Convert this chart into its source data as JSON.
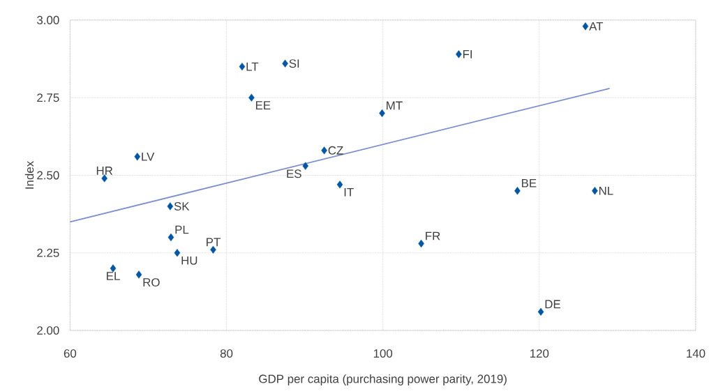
{
  "chart_data": {
    "type": "scatter",
    "xlabel": "GDP per capita (purchasing power parity, 2019)",
    "ylabel": "Index",
    "xlim": [
      60,
      140
    ],
    "xticks": [
      60,
      80,
      100,
      120,
      140
    ],
    "ylim": [
      2.0,
      3.0
    ],
    "yticks": [
      {
        "value": 2.0,
        "label": "2.00"
      },
      {
        "value": 2.25,
        "label": "2.25"
      },
      {
        "value": 2.5,
        "label": "2.50"
      },
      {
        "value": 2.75,
        "label": "2.75"
      },
      {
        "value": 3.0,
        "label": "3.00"
      }
    ],
    "grid": true,
    "series": [
      {
        "marker": "diamond",
        "color": "#0057a8",
        "x": [
          125.9,
          109.7,
          82.0,
          87.5,
          83.2,
          99.9,
          92.5,
          90.1,
          94.5,
          68.6,
          64.4,
          72.8,
          72.9,
          78.3,
          73.7,
          65.5,
          68.8,
          104.9,
          117.2,
          127.1,
          120.2
        ],
        "values": [
          2.98,
          2.89,
          2.85,
          2.86,
          2.75,
          2.7,
          2.58,
          2.53,
          2.47,
          2.56,
          2.49,
          2.4,
          2.3,
          2.26,
          2.25,
          2.2,
          2.18,
          2.28,
          2.45,
          2.45,
          2.06
        ]
      },
      {
        "type": "line",
        "marker": "none",
        "color": "#7b8fcf",
        "x": [
          60,
          129
        ],
        "values": [
          2.35,
          2.78
        ]
      }
    ],
    "annotations": [
      {
        "text": "AT",
        "x": 125.9,
        "y": 2.98
      },
      {
        "text": "FI",
        "x": 109.7,
        "y": 2.89
      },
      {
        "text": "LT",
        "x": 82.0,
        "y": 2.85
      },
      {
        "text": "SI",
        "x": 87.5,
        "y": 2.86
      },
      {
        "text": "EE",
        "x": 83.2,
        "y": 2.75
      },
      {
        "text": "MT",
        "x": 99.9,
        "y": 2.7
      },
      {
        "text": "CZ",
        "x": 92.5,
        "y": 2.58
      },
      {
        "text": "ES",
        "x": 90.1,
        "y": 2.53
      },
      {
        "text": "IT",
        "x": 94.5,
        "y": 2.47
      },
      {
        "text": "LV",
        "x": 68.6,
        "y": 2.56
      },
      {
        "text": "HR",
        "x": 64.4,
        "y": 2.49
      },
      {
        "text": "SK",
        "x": 72.8,
        "y": 2.4
      },
      {
        "text": "PL",
        "x": 72.9,
        "y": 2.3
      },
      {
        "text": "PT",
        "x": 78.3,
        "y": 2.26
      },
      {
        "text": "HU",
        "x": 73.7,
        "y": 2.25
      },
      {
        "text": "EL",
        "x": 65.5,
        "y": 2.2
      },
      {
        "text": "RO",
        "x": 68.8,
        "y": 2.18
      },
      {
        "text": "FR",
        "x": 104.9,
        "y": 2.28
      },
      {
        "text": "BE",
        "x": 117.2,
        "y": 2.45
      },
      {
        "text": "NL",
        "x": 127.1,
        "y": 2.45
      },
      {
        "text": "DE",
        "x": 120.2,
        "y": 2.06
      }
    ]
  }
}
